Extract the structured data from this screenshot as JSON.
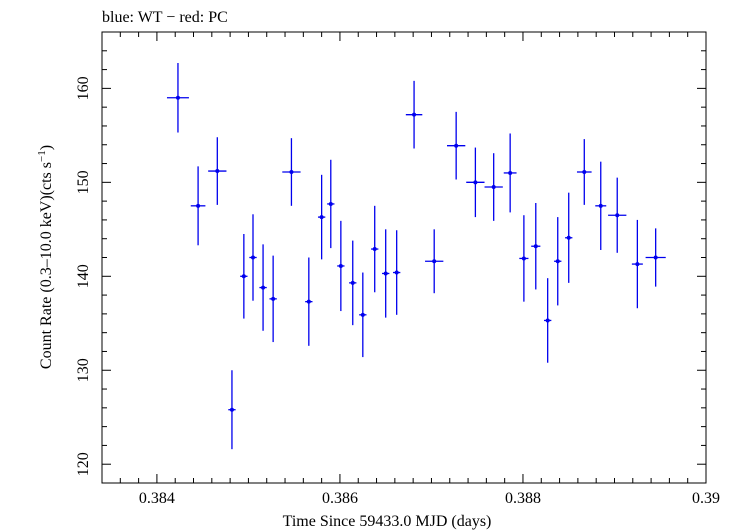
{
  "chart_data": {
    "type": "scatter",
    "title": "blue: WT − red: PC",
    "xlabel": "Time Since 59433.0 MJD (days)",
    "ylabel_main": "Count Rate (0.3–10.0 keV)(cts s",
    "ylabel_sup": "−1",
    "ylabel_end": ")",
    "xlim": [
      0.3834,
      0.39
    ],
    "ylim": [
      118,
      166
    ],
    "x_ticks": [
      0.384,
      0.386,
      0.388,
      0.39
    ],
    "x_tick_labels": [
      "0.384",
      "0.386",
      "0.388",
      "0.39"
    ],
    "y_ticks": [
      120,
      130,
      140,
      150,
      160
    ],
    "y_tick_labels": [
      "120",
      "130",
      "140",
      "150",
      "160"
    ],
    "grid": false,
    "legend": "none",
    "colors": {
      "WT": "#0000ee"
    },
    "series": [
      {
        "color": "#0000ee",
        "points": [
          {
            "x": 0.38423,
            "xerr": 0.00012,
            "y": 159.0,
            "yerr": 3.7
          },
          {
            "x": 0.38445,
            "xerr": 8e-05,
            "y": 147.5,
            "yerr": 4.2
          },
          {
            "x": 0.38466,
            "xerr": 0.0001,
            "y": 151.2,
            "yerr": 3.6
          },
          {
            "x": 0.38482,
            "xerr": 4e-05,
            "y": 125.8,
            "yerr": 4.2
          },
          {
            "x": 0.38495,
            "xerr": 4e-05,
            "y": 140.0,
            "yerr": 4.5
          },
          {
            "x": 0.38505,
            "xerr": 4e-05,
            "y": 142.0,
            "yerr": 4.6
          },
          {
            "x": 0.38516,
            "xerr": 4e-05,
            "y": 138.8,
            "yerr": 4.6
          },
          {
            "x": 0.38527,
            "xerr": 4e-05,
            "y": 137.6,
            "yerr": 4.6
          },
          {
            "x": 0.38547,
            "xerr": 0.0001,
            "y": 151.1,
            "yerr": 3.6
          },
          {
            "x": 0.38566,
            "xerr": 4e-05,
            "y": 137.3,
            "yerr": 4.7
          },
          {
            "x": 0.3858,
            "xerr": 4e-05,
            "y": 146.3,
            "yerr": 4.5
          },
          {
            "x": 0.3859,
            "xerr": 4e-05,
            "y": 147.7,
            "yerr": 4.7
          },
          {
            "x": 0.38601,
            "xerr": 4e-05,
            "y": 141.1,
            "yerr": 4.8
          },
          {
            "x": 0.38614,
            "xerr": 4e-05,
            "y": 139.3,
            "yerr": 4.5
          },
          {
            "x": 0.38625,
            "xerr": 4e-05,
            "y": 135.9,
            "yerr": 4.5
          },
          {
            "x": 0.38638,
            "xerr": 4e-05,
            "y": 142.9,
            "yerr": 4.6
          },
          {
            "x": 0.3865,
            "xerr": 4e-05,
            "y": 140.3,
            "yerr": 4.7
          },
          {
            "x": 0.38662,
            "xerr": 4e-05,
            "y": 140.4,
            "yerr": 4.5
          },
          {
            "x": 0.38681,
            "xerr": 9e-05,
            "y": 157.2,
            "yerr": 3.6
          },
          {
            "x": 0.38703,
            "xerr": 0.0001,
            "y": 141.6,
            "yerr": 3.4
          },
          {
            "x": 0.38727,
            "xerr": 0.0001,
            "y": 153.9,
            "yerr": 3.6
          },
          {
            "x": 0.38748,
            "xerr": 0.0001,
            "y": 150.0,
            "yerr": 3.7
          },
          {
            "x": 0.38768,
            "xerr": 0.0001,
            "y": 149.5,
            "yerr": 3.6
          },
          {
            "x": 0.38786,
            "xerr": 7e-05,
            "y": 151.0,
            "yerr": 4.2
          },
          {
            "x": 0.38801,
            "xerr": 5e-05,
            "y": 141.9,
            "yerr": 4.6
          },
          {
            "x": 0.38814,
            "xerr": 5e-05,
            "y": 143.2,
            "yerr": 4.6
          },
          {
            "x": 0.38827,
            "xerr": 4e-05,
            "y": 135.3,
            "yerr": 4.5
          },
          {
            "x": 0.38838,
            "xerr": 4e-05,
            "y": 141.6,
            "yerr": 4.7
          },
          {
            "x": 0.3885,
            "xerr": 4e-05,
            "y": 144.1,
            "yerr": 4.8
          },
          {
            "x": 0.38867,
            "xerr": 8e-05,
            "y": 151.1,
            "yerr": 3.5
          },
          {
            "x": 0.38885,
            "xerr": 6e-05,
            "y": 147.5,
            "yerr": 4.7
          },
          {
            "x": 0.38903,
            "xerr": 0.0001,
            "y": 146.5,
            "yerr": 4.0
          },
          {
            "x": 0.38925,
            "xerr": 6e-05,
            "y": 141.3,
            "yerr": 4.7
          },
          {
            "x": 0.38945,
            "xerr": 0.00011,
            "y": 142.0,
            "yerr": 3.1
          }
        ]
      }
    ]
  }
}
